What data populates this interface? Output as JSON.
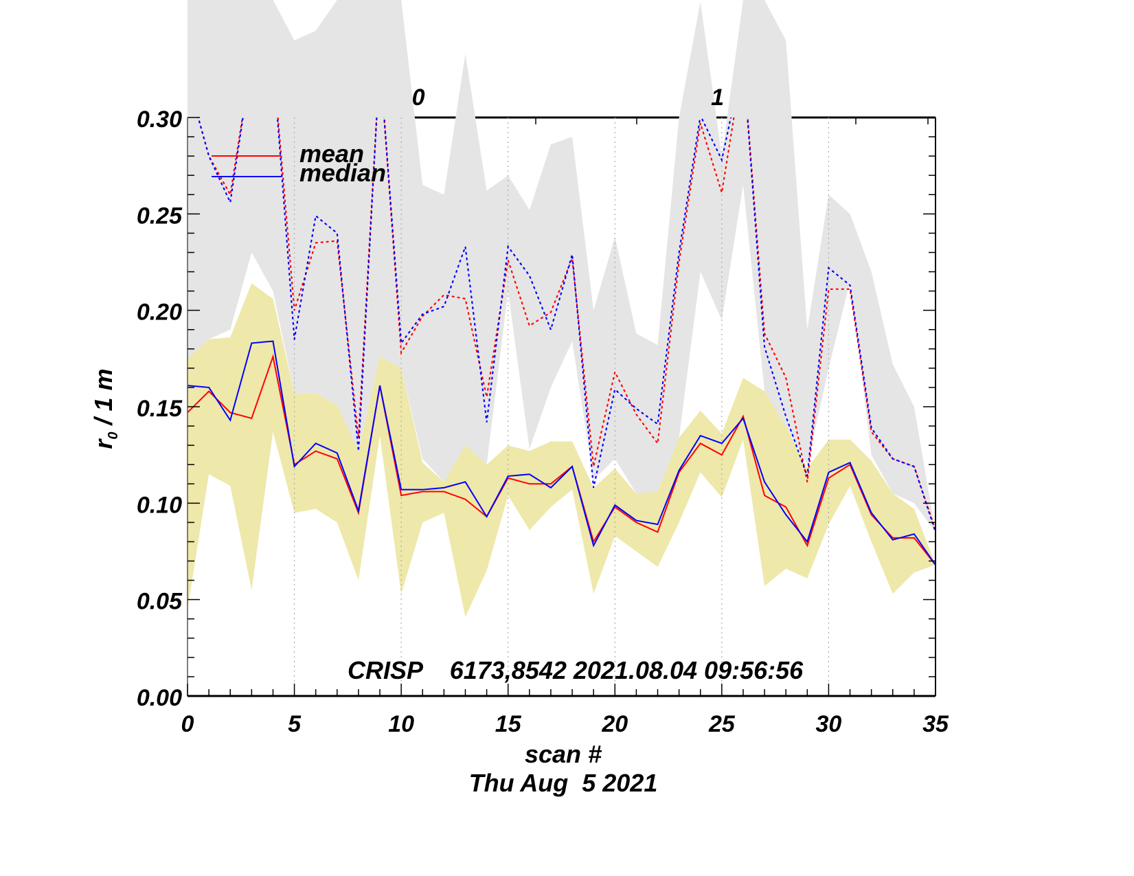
{
  "chart_data": {
    "type": "line",
    "title": "",
    "xlabel": "scan #",
    "xlabel2": "Thu Aug  5 2021",
    "ylabel_main": "r",
    "ylabel_sub": "0",
    "ylabel_rest": " / 1 m",
    "xlim": [
      0,
      35
    ],
    "ylim": [
      0,
      0.3
    ],
    "x_ticks": [
      0,
      5,
      10,
      15,
      20,
      25,
      30,
      35
    ],
    "x_tick_labels": [
      "0",
      "5",
      "10",
      "15",
      "20",
      "25",
      "30",
      "35"
    ],
    "y_ticks": [
      0.0,
      0.05,
      0.1,
      0.15,
      0.2,
      0.25,
      0.3
    ],
    "y_tick_labels": [
      "0.00",
      "0.05",
      "0.10",
      "0.15",
      "0.20",
      "0.25",
      "0.30"
    ],
    "top_axis_labels": [
      {
        "text": "0",
        "x": 10.8
      },
      {
        "text": "1",
        "x": 24.8
      }
    ],
    "grid": "vertical dotted at every 5 scans",
    "legend": {
      "placement": "top-left",
      "entries": [
        {
          "label": "mean",
          "color": "#ff0000"
        },
        {
          "label": "median",
          "color": "#0000ff"
        }
      ]
    },
    "annotation": "CRISP    6173,8542 2021.08.04 09:56:56",
    "x": [
      0,
      1,
      2,
      3,
      4,
      5,
      6,
      7,
      8,
      9,
      10,
      11,
      12,
      13,
      14,
      15,
      16,
      17,
      18,
      19,
      20,
      21,
      22,
      23,
      24,
      25,
      26,
      27,
      28,
      29,
      30,
      31,
      32,
      33,
      34,
      35
    ],
    "series": [
      {
        "name": "mean",
        "color": "#ff0000",
        "style": "solid",
        "values": [
          0.147,
          0.158,
          0.147,
          0.144,
          0.176,
          0.12,
          0.127,
          0.123,
          0.095,
          0.161,
          0.104,
          0.106,
          0.106,
          0.102,
          0.093,
          0.113,
          0.11,
          0.11,
          0.119,
          0.08,
          0.098,
          0.09,
          0.085,
          0.116,
          0.131,
          0.125,
          0.145,
          0.104,
          0.098,
          0.078,
          0.113,
          0.12,
          0.094,
          0.082,
          0.082,
          0.068
        ]
      },
      {
        "name": "median",
        "color": "#0000ff",
        "style": "solid",
        "values": [
          0.161,
          0.16,
          0.143,
          0.183,
          0.184,
          0.119,
          0.131,
          0.126,
          0.096,
          0.161,
          0.107,
          0.107,
          0.108,
          0.111,
          0.093,
          0.114,
          0.115,
          0.108,
          0.119,
          0.078,
          0.099,
          0.091,
          0.089,
          0.117,
          0.135,
          0.131,
          0.144,
          0.111,
          0.094,
          0.08,
          0.116,
          0.121,
          0.095,
          0.081,
          0.084,
          0.068
        ]
      },
      {
        "name": "mean (dotted)",
        "color": "#ff0000",
        "style": "dotted",
        "values": [
          0.32,
          0.28,
          0.26,
          0.33,
          0.33,
          0.2,
          0.235,
          0.236,
          0.134,
          0.33,
          0.178,
          0.197,
          0.208,
          0.206,
          0.155,
          0.226,
          0.192,
          0.199,
          0.227,
          0.119,
          0.168,
          0.146,
          0.131,
          0.225,
          0.297,
          0.261,
          0.33,
          0.188,
          0.165,
          0.111,
          0.211,
          0.211,
          0.137,
          0.123,
          0.119,
          0.086
        ]
      },
      {
        "name": "median (dotted)",
        "color": "#0000ff",
        "style": "dotted",
        "values": [
          0.32,
          0.28,
          0.256,
          0.33,
          0.33,
          0.185,
          0.249,
          0.24,
          0.127,
          0.33,
          0.183,
          0.198,
          0.202,
          0.233,
          0.142,
          0.233,
          0.218,
          0.19,
          0.229,
          0.108,
          0.159,
          0.149,
          0.141,
          0.23,
          0.301,
          0.278,
          0.33,
          0.181,
          0.145,
          0.114,
          0.222,
          0.213,
          0.139,
          0.123,
          0.119,
          0.085
        ]
      }
    ],
    "bands": [
      {
        "name": "dotted range",
        "color": "#e5e5e5",
        "upper": [
          0.62,
          0.62,
          0.62,
          0.62,
          0.62,
          0.34,
          0.345,
          0.37,
          0.62,
          0.62,
          0.62,
          0.265,
          0.26,
          0.333,
          0.262,
          0.27,
          0.252,
          0.286,
          0.29,
          0.2,
          0.238,
          0.188,
          0.182,
          0.3,
          0.36,
          0.28,
          0.62,
          0.62,
          0.34,
          0.19,
          0.26,
          0.25,
          0.22,
          0.172,
          0.15,
          0.085
        ],
        "lower": [
          0.175,
          0.185,
          0.19,
          0.23,
          0.21,
          0.157,
          0.157,
          0.151,
          0.127,
          0.176,
          0.17,
          0.123,
          0.111,
          0.13,
          0.12,
          0.21,
          0.128,
          0.16,
          0.184,
          0.112,
          0.123,
          0.105,
          0.106,
          0.134,
          0.22,
          0.195,
          0.265,
          0.158,
          0.14,
          0.12,
          0.17,
          0.215,
          0.125,
          0.105,
          0.1,
          0.085
        ]
      },
      {
        "name": "solid range",
        "color": "#eee8aa",
        "upper": [
          0.175,
          0.185,
          0.186,
          0.214,
          0.206,
          0.157,
          0.157,
          0.151,
          0.127,
          0.176,
          0.17,
          0.121,
          0.111,
          0.13,
          0.12,
          0.13,
          0.127,
          0.132,
          0.132,
          0.108,
          0.118,
          0.105,
          0.106,
          0.134,
          0.148,
          0.136,
          0.165,
          0.158,
          0.14,
          0.118,
          0.133,
          0.133,
          0.122,
          0.105,
          0.097,
          0.068
        ],
        "lower": [
          0.045,
          0.115,
          0.109,
          0.055,
          0.137,
          0.095,
          0.097,
          0.09,
          0.06,
          0.135,
          0.053,
          0.09,
          0.095,
          0.041,
          0.065,
          0.104,
          0.086,
          0.098,
          0.107,
          0.053,
          0.083,
          0.075,
          0.067,
          0.09,
          0.116,
          0.103,
          0.133,
          0.057,
          0.066,
          0.061,
          0.089,
          0.109,
          0.08,
          0.053,
          0.064,
          0.068
        ]
      }
    ]
  }
}
